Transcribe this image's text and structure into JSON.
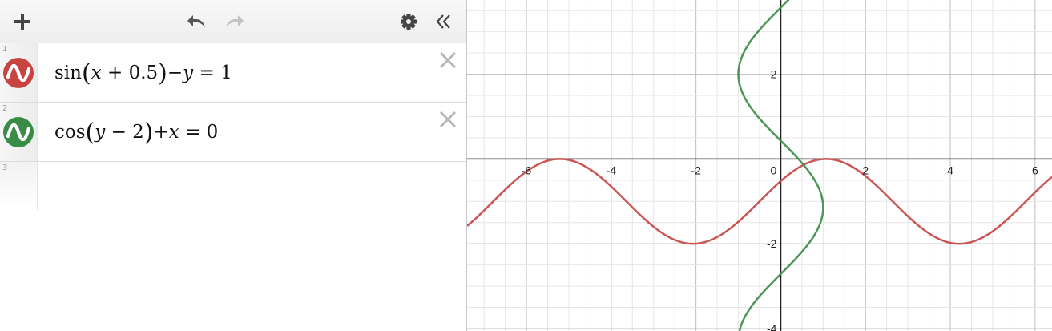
{
  "toolbar": {
    "add_icon": "plus-icon",
    "undo_icon": "undo-icon",
    "redo_icon": "redo-icon",
    "settings_icon": "gear-icon",
    "collapse_icon": "double-chevron-left-icon"
  },
  "expressions": [
    {
      "index": "1",
      "color": "#c74440",
      "icon": "wave-icon",
      "fn": "sin",
      "var1": "x",
      "mid": " + 0.5",
      "op1": "−",
      "var2": "y",
      "rest": " = 1"
    },
    {
      "index": "2",
      "color": "#388c46",
      "icon": "wave-icon",
      "fn": "cos",
      "var1": "y",
      "mid": " − 2",
      "op1": "+",
      "var2": "x",
      "rest": " = 0"
    },
    {
      "index": "3"
    }
  ],
  "chart_data": {
    "type": "line",
    "xlim": [
      -7.4,
      6.4
    ],
    "ylim": [
      -4.1,
      3.75
    ],
    "grid": true,
    "x_ticks": [
      "-6",
      "-4",
      "-2",
      "0",
      "2",
      "4",
      "6"
    ],
    "y_ticks": [
      "2",
      "-2",
      "-4"
    ],
    "series": [
      {
        "equation": "sin(x + 0.5) − y = 1",
        "color": "#c74440"
      },
      {
        "equation": "cos(y − 2) + x = 0",
        "color": "#388c46"
      }
    ]
  }
}
